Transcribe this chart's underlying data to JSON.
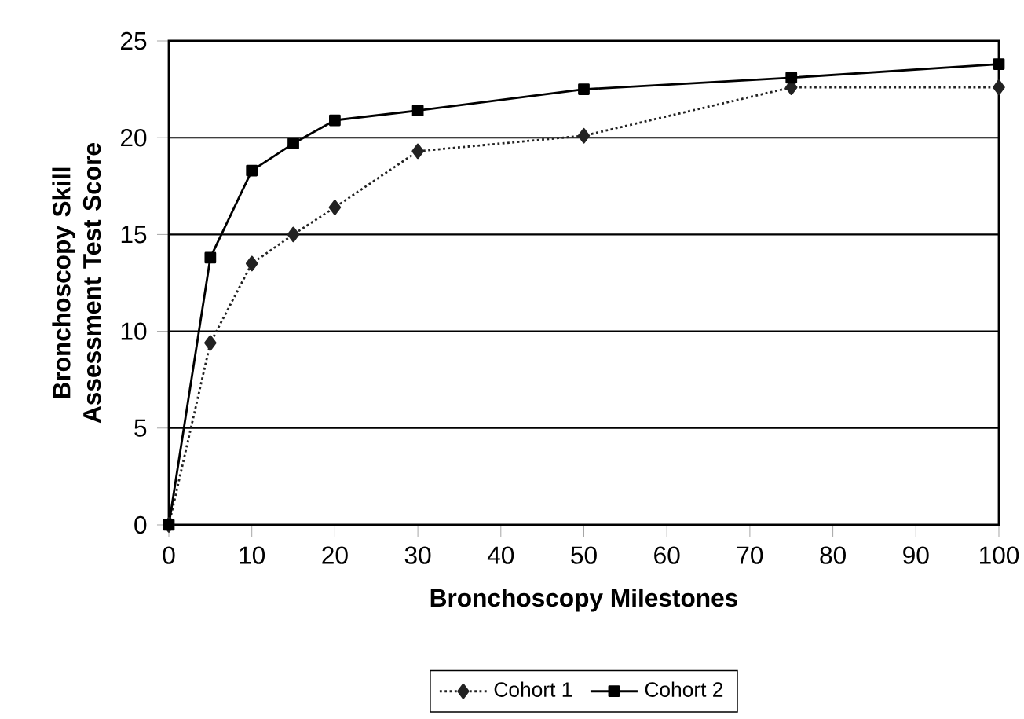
{
  "chart_data": {
    "type": "line",
    "xlabel": "Bronchoscopy Milestones",
    "ylabel": "Bronchoscopy Skill Assessment Test Score",
    "x": [
      0,
      5,
      10,
      15,
      20,
      30,
      50,
      75,
      100
    ],
    "series": [
      {
        "name": "Cohort 1",
        "color": "#222222",
        "marker": "diamond",
        "line_style": "dotted",
        "values": [
          0,
          9.4,
          13.5,
          15.0,
          16.4,
          19.3,
          20.1,
          22.6,
          22.6
        ]
      },
      {
        "name": "Cohort 2",
        "color": "#000000",
        "marker": "square",
        "line_style": "solid",
        "values": [
          0,
          13.8,
          18.3,
          19.7,
          20.9,
          21.4,
          22.5,
          23.1,
          23.8
        ]
      }
    ],
    "xlim": [
      0,
      100
    ],
    "ylim": [
      0,
      25
    ],
    "xticks": [
      0,
      10,
      20,
      30,
      40,
      50,
      60,
      70,
      80,
      90,
      100
    ],
    "yticks": [
      0,
      5,
      10,
      15,
      20,
      25
    ],
    "grid": "y",
    "legend": "bottom"
  }
}
